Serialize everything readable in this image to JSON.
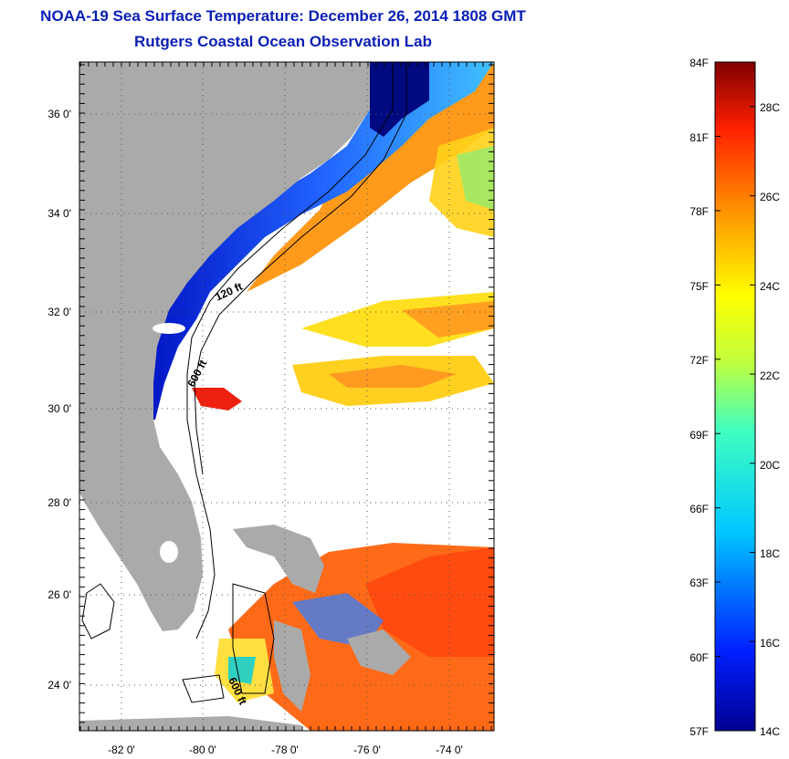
{
  "title": "NOAA-19 Sea Surface Temperature:  December 26, 2014 1808 GMT",
  "subtitle": "Rutgers Coastal Ocean Observation Lab",
  "lat_labels": [
    "36 0'",
    "34 0'",
    "32 0'",
    "30 0'",
    "28 0'",
    "26 0'",
    "24 0'"
  ],
  "lon_labels": [
    "-82 0'",
    "-80 0'",
    "-78 0'",
    "-76 0'",
    "-74 0'"
  ],
  "contour_labels": [
    "120 ft",
    "600 ft",
    "600 ft"
  ],
  "colorbar": {
    "fahrenheit_labels": [
      "84F",
      "81F",
      "78F",
      "75F",
      "72F",
      "69F",
      "66F",
      "63F",
      "60F",
      "57F"
    ],
    "celsius_labels": [
      "28C",
      "26C",
      "24C",
      "22C",
      "20C",
      "18C",
      "16C",
      "14C"
    ],
    "min_f": 57,
    "max_f": 84,
    "min_c": 14,
    "max_c": 29
  },
  "colors": {
    "land": "#aaaaaa",
    "cloud": "#ffffff",
    "title": "#0a1fb4"
  }
}
